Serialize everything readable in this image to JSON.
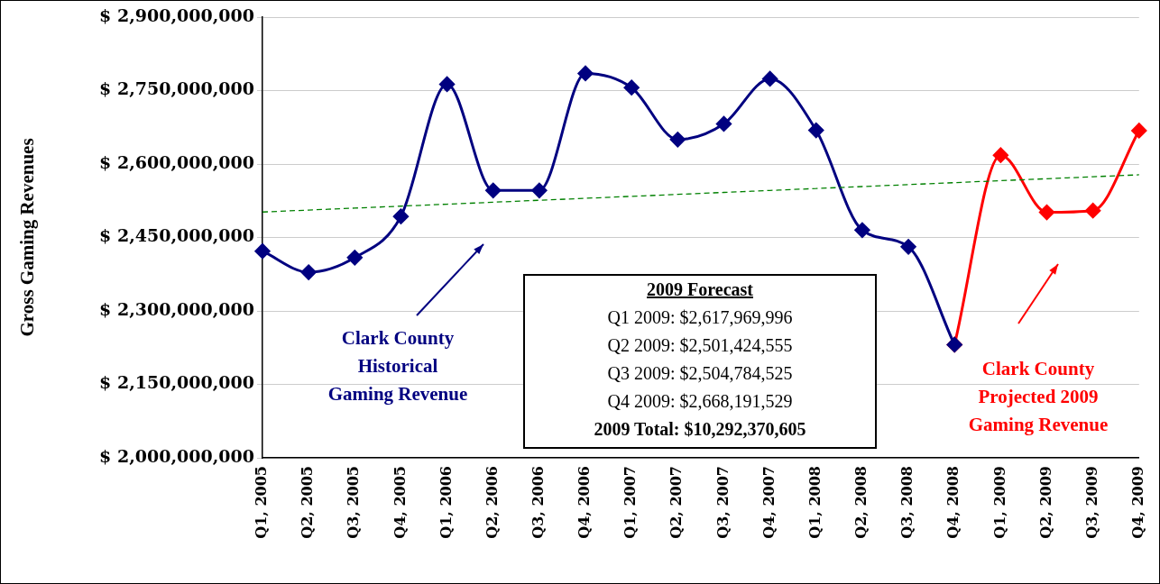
{
  "chart_data": {
    "type": "line",
    "ylabel": "Gross Gaming Revenues",
    "categories": [
      "Q1, 2005",
      "Q2, 2005",
      "Q3, 2005",
      "Q4, 2005",
      "Q1, 2006",
      "Q2, 2006",
      "Q3, 2006",
      "Q4, 2006",
      "Q1, 2007",
      "Q2, 2007",
      "Q3, 2007",
      "Q4, 2007",
      "Q1, 2008",
      "Q2, 2008",
      "Q3, 2008",
      "Q4, 2008",
      "Q1, 2009",
      "Q2, 2009",
      "Q3, 2009",
      "Q4, 2009"
    ],
    "series": [
      {
        "color": "#ff0000",
        "values": [
          null,
          null,
          null,
          null,
          null,
          null,
          null,
          null,
          null,
          null,
          null,
          null,
          null,
          null,
          null,
          2231000000,
          2617969996,
          2501424555,
          2504784525,
          2668191529
        ],
        "marker": "diamond",
        "line_style": "solid"
      },
      {
        "color": "#000080",
        "values": [
          2422000000,
          2379000000,
          2409000000,
          2493000000,
          2763000000,
          2546000000,
          2546000000,
          2785000000,
          2756000000,
          2650000000,
          2682000000,
          2774000000,
          2669000000,
          2465000000,
          2431000000,
          2231000000,
          null,
          null,
          null,
          null
        ],
        "marker": "diamond",
        "line_style": "solid"
      },
      {
        "color": "#008000",
        "values": [
          2502000000,
          2506000000,
          2510000000,
          2514000000,
          2518000000,
          2522000000,
          2526000000,
          2530000000,
          2534000000,
          2538000000,
          2542000000,
          2546000000,
          2550000000,
          2554000000,
          2558000000,
          2562000000,
          2566000000,
          2570000000,
          2574000000,
          2578000000
        ],
        "marker": "none",
        "line_style": "dashed"
      }
    ],
    "ylim": [
      2000000000,
      2900000000
    ],
    "yticks": [
      {
        "value": 2000000000,
        "label": "$ 2,000,000,000"
      },
      {
        "value": 2150000000,
        "label": "$ 2,150,000,000"
      },
      {
        "value": 2300000000,
        "label": "$ 2,300,000,000"
      },
      {
        "value": 2450000000,
        "label": "$ 2,450,000,000"
      },
      {
        "value": 2600000000,
        "label": "$ 2,600,000,000"
      },
      {
        "value": 2750000000,
        "label": "$ 2,750,000,000"
      },
      {
        "value": 2900000000,
        "label": "$ 2,900,000,000"
      }
    ],
    "grid": "y",
    "legend": false,
    "annotations": [
      "Clark County\nHistorical\nGaming Revenue",
      "Clark County\nProjected 2009\nGaming Revenue",
      "2009 Forecast",
      "Q1 2009: $2,617,969,996",
      "Q2 2009: $2,501,424,555",
      "Q3 2009: $2,504,784,525",
      "Q4 2009: $2,668,191,529",
      "2009 Total: $10,292,370,605"
    ]
  }
}
